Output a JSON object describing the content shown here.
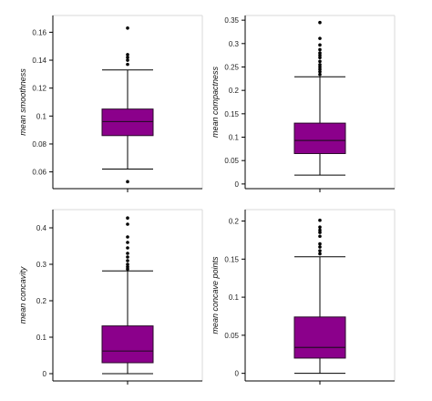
{
  "colors": {
    "box_fill": "#8b008b",
    "box_stroke": "#2a0a2a",
    "axis": "#000000",
    "frame": "#d9d9d9",
    "outlier": "#000000"
  },
  "chart_data": [
    {
      "type": "box",
      "ylabel": "mean smoothness",
      "ylim": [
        0.048,
        0.172
      ],
      "yticks": [
        0.06,
        0.08,
        0.1,
        0.12,
        0.14,
        0.16
      ],
      "ytick_labels": [
        "0.06",
        "0.08",
        "0.1",
        "0.12",
        "0.14",
        "0.16"
      ],
      "box": {
        "whisker_low": 0.062,
        "q1": 0.086,
        "median": 0.096,
        "q3": 0.105,
        "whisker_high": 0.133
      },
      "outliers": [
        0.137,
        0.14,
        0.142,
        0.144,
        0.163,
        0.053
      ]
    },
    {
      "type": "box",
      "ylabel": "mean compactness",
      "ylim": [
        -0.01,
        0.36
      ],
      "yticks": [
        0,
        0.05,
        0.1,
        0.15,
        0.2,
        0.25,
        0.3,
        0.35
      ],
      "ytick_labels": [
        "0",
        "0.05",
        "0.1",
        "0.15",
        "0.2",
        "0.25",
        "0.3",
        "0.35"
      ],
      "box": {
        "whisker_low": 0.019,
        "q1": 0.065,
        "median": 0.093,
        "q3": 0.13,
        "whisker_high": 0.229
      },
      "outliers": [
        0.234,
        0.24,
        0.245,
        0.25,
        0.255,
        0.262,
        0.27,
        0.275,
        0.28,
        0.287,
        0.297,
        0.311,
        0.345
      ]
    },
    {
      "type": "box",
      "ylabel": "mean concavity",
      "ylim": [
        -0.02,
        0.45
      ],
      "yticks": [
        0,
        0.1,
        0.2,
        0.3,
        0.4
      ],
      "ytick_labels": [
        "0",
        "0.1",
        "0.2",
        "0.3",
        "0.4"
      ],
      "box": {
        "whisker_low": 0.0,
        "q1": 0.03,
        "median": 0.062,
        "q3": 0.131,
        "whisker_high": 0.282
      },
      "outliers": [
        0.287,
        0.293,
        0.3,
        0.31,
        0.32,
        0.33,
        0.345,
        0.36,
        0.375,
        0.41,
        0.427
      ]
    },
    {
      "type": "box",
      "ylabel": "mean concave points",
      "ylim": [
        -0.01,
        0.215
      ],
      "yticks": [
        0,
        0.05,
        0.1,
        0.15,
        0.2
      ],
      "ytick_labels": [
        "0",
        "0.05",
        "0.1",
        "0.15",
        "0.2"
      ],
      "box": {
        "whisker_low": 0.0,
        "q1": 0.02,
        "median": 0.034,
        "q3": 0.074,
        "whisker_high": 0.153
      },
      "outliers": [
        0.157,
        0.161,
        0.166,
        0.17,
        0.18,
        0.185,
        0.188,
        0.192,
        0.201
      ]
    }
  ]
}
